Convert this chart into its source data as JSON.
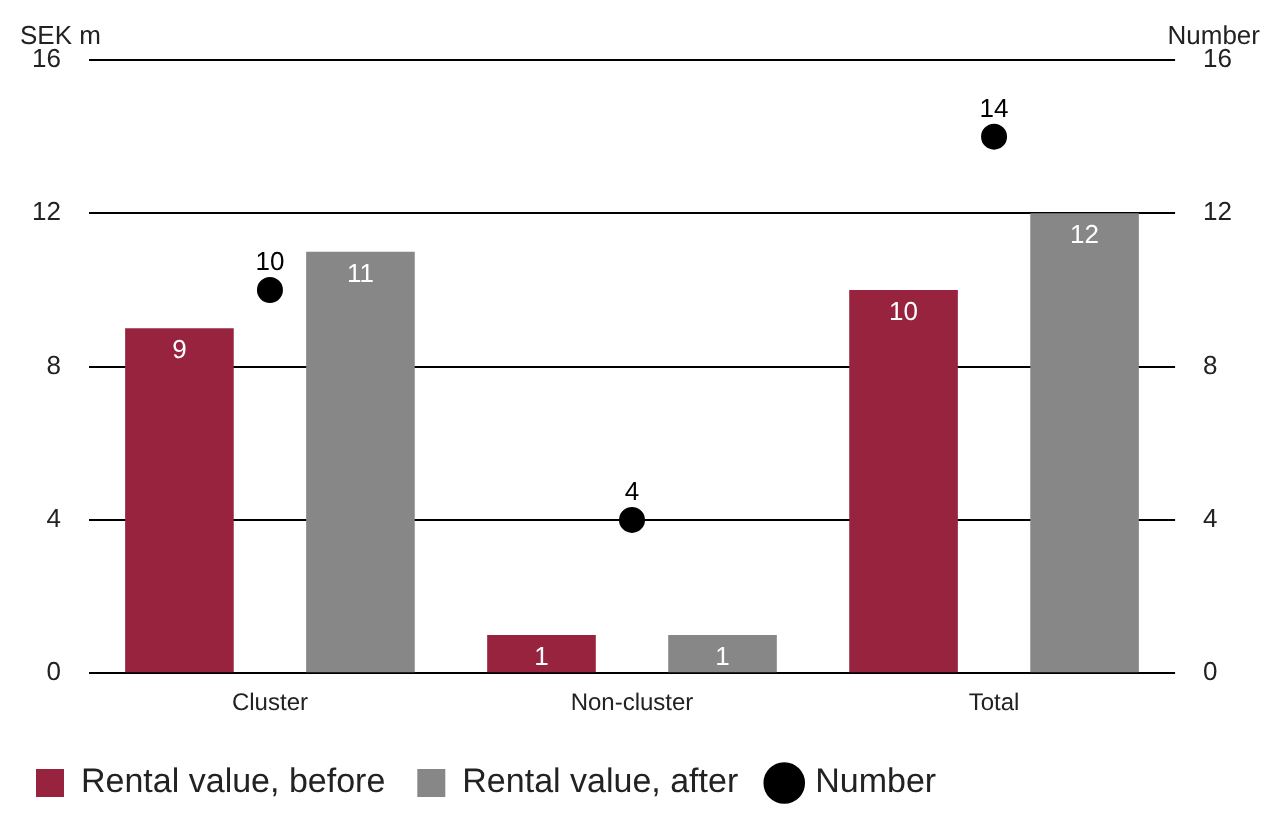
{
  "chart_data": {
    "type": "bar",
    "ylabel": "SEK m",
    "y2label": "Number",
    "categories": [
      "Cluster",
      "Non-cluster",
      "Total"
    ],
    "series": [
      {
        "name": "Rental value, before",
        "color": "#98233f",
        "values": [
          9,
          1,
          10
        ]
      },
      {
        "name": "Rental value, after",
        "color": "#878787",
        "values": [
          11,
          1,
          12
        ]
      },
      {
        "name": "Number",
        "type": "scatter",
        "axis": "y2",
        "color": "#000000",
        "values": [
          10,
          4,
          14
        ]
      }
    ],
    "ylim": [
      0,
      16
    ],
    "yticks": [
      0,
      4,
      8,
      12,
      16
    ],
    "y2lim": [
      0,
      16
    ],
    "y2ticks": [
      0,
      4,
      8,
      12,
      16
    ],
    "grid": "y",
    "legend": "bottom left",
    "marker": "circle",
    "data_labels": true
  }
}
